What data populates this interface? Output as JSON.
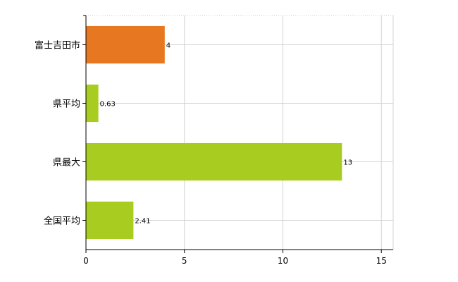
{
  "chart_data": {
    "type": "bar",
    "orientation": "horizontal",
    "categories": [
      "富士吉田市",
      "県平均",
      "県最大",
      "全国平均"
    ],
    "values": [
      4,
      0.63,
      13,
      2.41
    ],
    "value_labels": [
      "4",
      "0.63",
      "13",
      "2.41"
    ],
    "bar_colors": [
      "#e87722",
      "#a8cc1f",
      "#a8cc1f",
      "#a8cc1f"
    ],
    "xlim": [
      0,
      15.6
    ],
    "x_ticks": [
      0,
      5,
      10,
      15
    ],
    "x_tick_labels": [
      "0",
      "5",
      "10",
      "15"
    ],
    "grid": true,
    "title": "",
    "xlabel": "",
    "ylabel": ""
  }
}
